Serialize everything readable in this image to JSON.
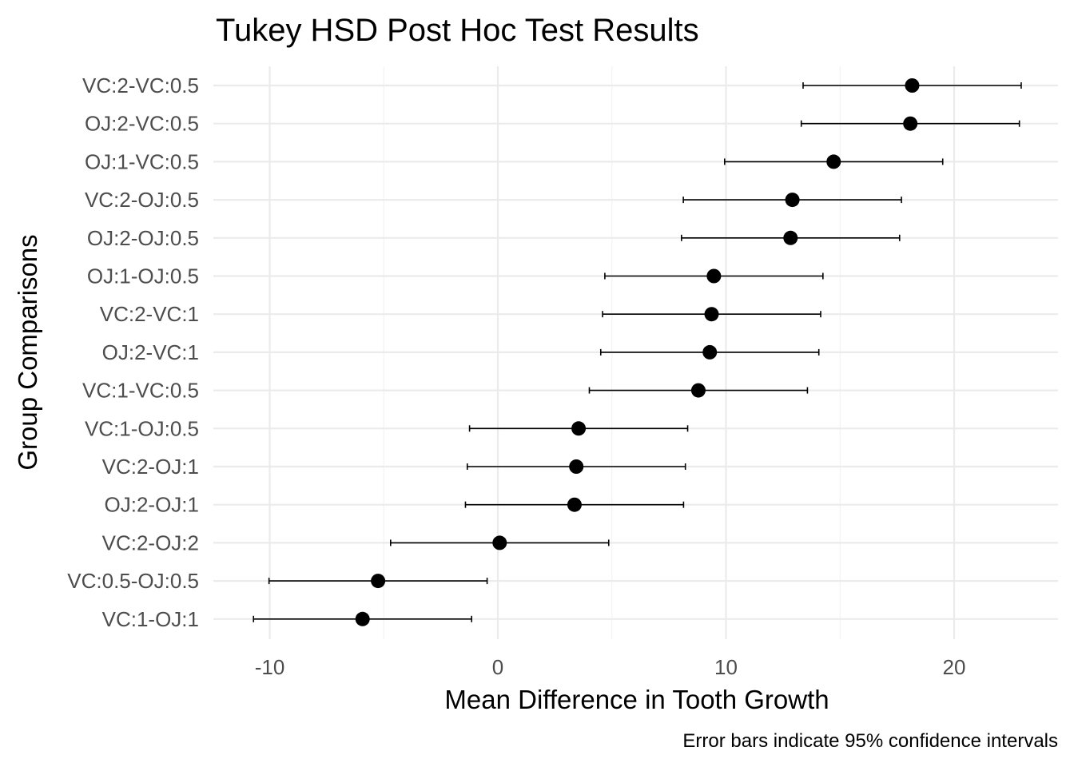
{
  "chart_data": {
    "type": "scatter",
    "subtype": "point-range",
    "title": "Tukey HSD Post Hoc Test Results",
    "xlabel": "Mean Difference in Tooth Growth",
    "ylabel": "Group Comparisons",
    "caption": "Error bars indicate 95% confidence intervals",
    "xlim": [
      -12.4,
      24.8
    ],
    "x_ticks": [
      -10,
      0,
      10,
      20
    ],
    "x_tick_labels": [
      "-10",
      "0",
      "10",
      "20"
    ],
    "grid": true,
    "legend": "none",
    "point_color": "#000000",
    "categories": [
      "VC:2-VC:0.5",
      "OJ:2-VC:0.5",
      "OJ:1-VC:0.5",
      "VC:2-OJ:0.5",
      "OJ:2-OJ:0.5",
      "OJ:1-OJ:0.5",
      "VC:2-VC:1",
      "OJ:2-VC:1",
      "VC:1-VC:0.5",
      "VC:1-OJ:0.5",
      "VC:2-OJ:1",
      "OJ:2-OJ:1",
      "VC:2-OJ:2",
      "VC:0.5-OJ:0.5",
      "VC:1-OJ:1"
    ],
    "estimate": [
      18.16,
      18.08,
      14.72,
      12.91,
      12.83,
      9.47,
      9.37,
      9.29,
      8.79,
      3.54,
      3.44,
      3.36,
      0.08,
      -5.25,
      -5.93
    ],
    "lower": [
      13.38,
      13.3,
      9.94,
      8.13,
      8.05,
      4.69,
      4.59,
      4.51,
      4.01,
      -1.24,
      -1.34,
      -1.42,
      -4.7,
      -10.03,
      -10.71
    ],
    "upper": [
      22.94,
      22.86,
      19.5,
      17.69,
      17.61,
      14.25,
      14.15,
      14.07,
      13.57,
      8.32,
      8.22,
      8.14,
      4.86,
      -0.47,
      -1.15
    ]
  }
}
